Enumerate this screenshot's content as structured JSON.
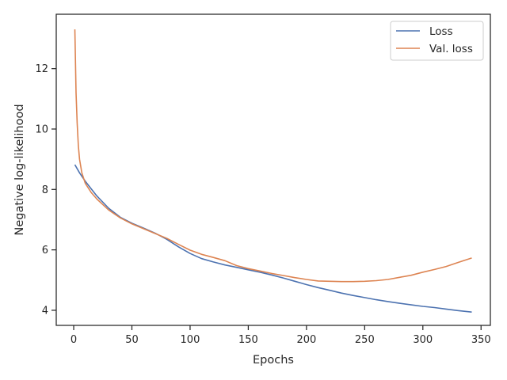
{
  "chart_data": {
    "type": "line",
    "title": "",
    "xlabel": "Epochs",
    "ylabel": "Negative log-likelihood",
    "xlim": [
      -15,
      358
    ],
    "ylim": [
      3.5,
      13.8
    ],
    "xticks": [
      0,
      50,
      100,
      150,
      200,
      250,
      300,
      350
    ],
    "yticks": [
      4,
      6,
      8,
      10,
      12
    ],
    "grid": false,
    "legend_position": "top-right",
    "series": [
      {
        "name": "Loss",
        "color": "#4c72b0",
        "x": [
          1,
          5,
          10,
          15,
          20,
          30,
          40,
          50,
          60,
          70,
          80,
          90,
          100,
          110,
          120,
          130,
          140,
          150,
          160,
          170,
          180,
          190,
          200,
          210,
          220,
          230,
          240,
          250,
          260,
          270,
          280,
          290,
          300,
          310,
          320,
          330,
          342
        ],
        "y": [
          8.82,
          8.55,
          8.27,
          8.02,
          7.78,
          7.38,
          7.08,
          6.88,
          6.72,
          6.55,
          6.35,
          6.1,
          5.88,
          5.71,
          5.6,
          5.5,
          5.42,
          5.34,
          5.26,
          5.17,
          5.07,
          4.96,
          4.85,
          4.75,
          4.66,
          4.57,
          4.49,
          4.42,
          4.35,
          4.29,
          4.23,
          4.18,
          4.13,
          4.09,
          4.04,
          3.99,
          3.94
        ]
      },
      {
        "name": "Val. loss",
        "color": "#dd8452",
        "x": [
          1,
          2,
          3,
          4,
          5,
          7,
          10,
          15,
          20,
          30,
          40,
          50,
          60,
          70,
          80,
          90,
          100,
          110,
          120,
          130,
          140,
          150,
          160,
          170,
          180,
          190,
          200,
          210,
          220,
          230,
          240,
          250,
          260,
          270,
          280,
          290,
          300,
          310,
          320,
          330,
          342
        ],
        "y": [
          13.3,
          11.2,
          10.2,
          9.45,
          9.0,
          8.55,
          8.2,
          7.9,
          7.68,
          7.32,
          7.06,
          6.86,
          6.7,
          6.54,
          6.38,
          6.18,
          5.99,
          5.85,
          5.75,
          5.64,
          5.48,
          5.38,
          5.3,
          5.22,
          5.15,
          5.08,
          5.02,
          4.97,
          4.96,
          4.95,
          4.95,
          4.96,
          4.98,
          5.02,
          5.09,
          5.16,
          5.26,
          5.35,
          5.45,
          5.58,
          5.73
        ]
      }
    ]
  }
}
